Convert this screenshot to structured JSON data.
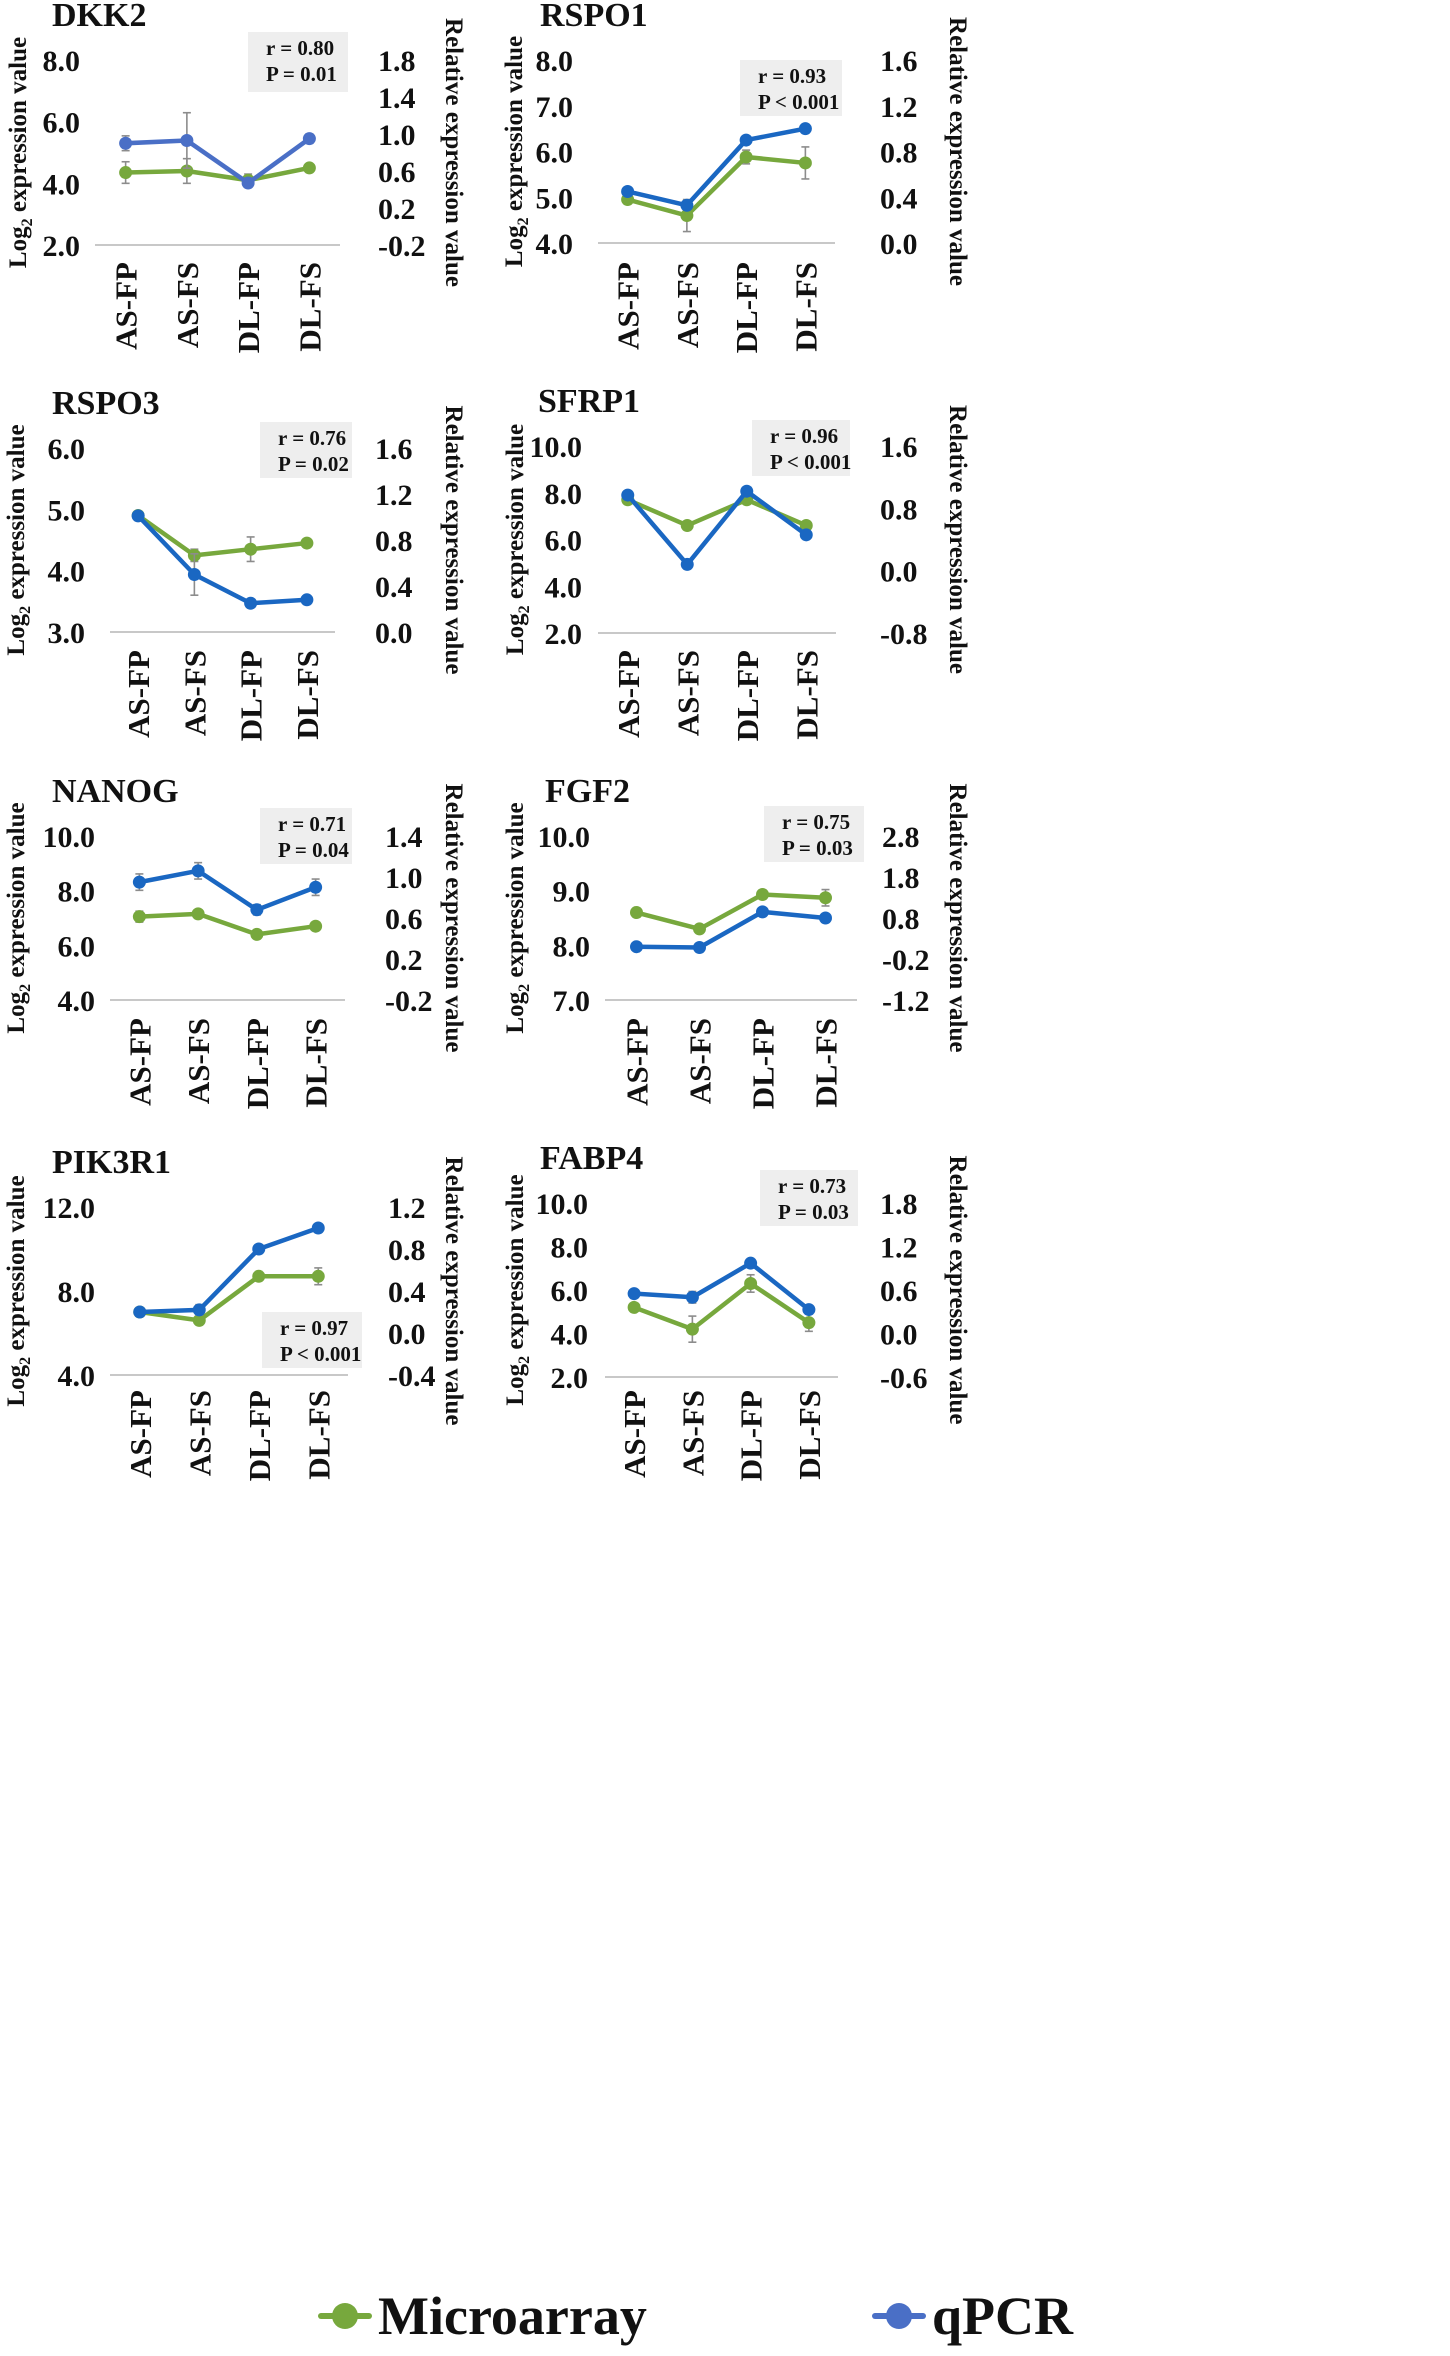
{
  "colors": {
    "microarray": "#77a83d",
    "qpcr": "#1a67c2",
    "qpcr_dkk2": "#4a6fc6",
    "text": "#111111",
    "axis": "#c8c8c8",
    "annotation_bg": "#eeeeee",
    "error_bar": "#8c8c8c"
  },
  "legend": {
    "microarray_label": "Microarray",
    "qpcr_label": "qPCR"
  },
  "chart_data": [
    {
      "type": "line",
      "title": "DKK2",
      "categories": [
        "AS-FP",
        "AS-FS",
        "DL-FP",
        "DL-FS"
      ],
      "ylabel_left": "Log2 expression value",
      "ylabel_right": "Relative expression value",
      "y_left_ticks": [
        "8.0",
        "6.0",
        "4.0",
        "2.0"
      ],
      "y_left_range": [
        2.0,
        8.0
      ],
      "y_right_ticks": [
        "1.8",
        "1.4",
        "1.0",
        "0.6",
        "0.2",
        "-0.2"
      ],
      "y_right_range": [
        -0.2,
        1.8
      ],
      "annotation": [
        "r = 0.80",
        "P = 0.01"
      ],
      "annotation_position": "top-right",
      "series": [
        {
          "name": "Microarray",
          "axis": "left",
          "values": [
            4.35,
            4.4,
            4.1,
            4.5
          ],
          "errors": [
            0.35,
            0.4,
            0.2,
            0.05
          ]
        },
        {
          "name": "qPCR",
          "axis": "right",
          "values": [
            0.9,
            0.93,
            0.47,
            0.95
          ],
          "errors": [
            0.08,
            0.3,
            0.04,
            0.05
          ]
        }
      ]
    },
    {
      "type": "line",
      "title": "RSPO1",
      "categories": [
        "AS-FP",
        "AS-FS",
        "DL-FP",
        "DL-FS"
      ],
      "ylabel_left": "Log2 expression value",
      "ylabel_right": "Relative expression value",
      "y_left_ticks": [
        "8.0",
        "7.0",
        "6.0",
        "5.0",
        "4.0"
      ],
      "y_left_range": [
        4.0,
        8.0
      ],
      "y_right_ticks": [
        "1.6",
        "1.2",
        "0.8",
        "0.4",
        "0.0"
      ],
      "y_right_range": [
        0.0,
        1.6
      ],
      "annotation": [
        "r = 0.93",
        "P < 0.001"
      ],
      "annotation_position": "top-right",
      "series": [
        {
          "name": "Microarray",
          "axis": "left",
          "values": [
            4.95,
            4.6,
            5.88,
            5.75
          ],
          "errors": [
            0.05,
            0.35,
            0.15,
            0.35
          ]
        },
        {
          "name": "qPCR",
          "axis": "right",
          "values": [
            0.45,
            0.33,
            0.9,
            1.0
          ],
          "errors": [
            0.02,
            0.04,
            0.03,
            0.02
          ]
        }
      ]
    },
    {
      "type": "line",
      "title": "RSPO3",
      "categories": [
        "AS-FP",
        "AS-FS",
        "DL-FP",
        "DL-FS"
      ],
      "ylabel_left": "Log2 expression value",
      "ylabel_right": "Relative expression value",
      "y_left_ticks": [
        "6.0",
        "5.0",
        "4.0",
        "3.0"
      ],
      "y_left_range": [
        3.0,
        6.0
      ],
      "y_right_ticks": [
        "1.6",
        "1.2",
        "0.8",
        "0.4",
        "0.0"
      ],
      "y_right_range": [
        0.0,
        1.6
      ],
      "annotation": [
        "r = 0.76",
        "P = 0.02"
      ],
      "annotation_position": "top-right",
      "series": [
        {
          "name": "Microarray",
          "axis": "left",
          "values": [
            4.9,
            4.25,
            4.35,
            4.45
          ],
          "errors": [
            0.05,
            0.1,
            0.2,
            0.05
          ]
        },
        {
          "name": "qPCR",
          "axis": "right",
          "values": [
            1.01,
            0.5,
            0.25,
            0.28
          ],
          "errors": [
            0.02,
            0.18,
            0.03,
            0.02
          ]
        }
      ]
    },
    {
      "type": "line",
      "title": "SFRP1",
      "categories": [
        "AS-FP",
        "AS-FS",
        "DL-FP",
        "DL-FS"
      ],
      "ylabel_left": "Log2 expression value",
      "ylabel_right": "Relative expression value",
      "y_left_ticks": [
        "10.0",
        "8.0",
        "6.0",
        "4.0",
        "2.0"
      ],
      "y_left_range": [
        2.0,
        10.0
      ],
      "y_right_ticks": [
        "1.6",
        "0.8",
        "0.0",
        "-0.8"
      ],
      "y_right_range": [
        -0.8,
        1.6
      ],
      "annotation": [
        "r = 0.96",
        "P < 0.001"
      ],
      "annotation_position": "top-right",
      "series": [
        {
          "name": "Microarray",
          "axis": "left",
          "values": [
            7.7,
            6.6,
            7.7,
            6.6
          ],
          "errors": [
            0.1,
            0.1,
            0.1,
            0.1
          ]
        },
        {
          "name": "qPCR",
          "axis": "right",
          "values": [
            0.97,
            0.08,
            1.02,
            0.46
          ],
          "errors": [
            0.02,
            0.02,
            0.02,
            0.02
          ]
        }
      ]
    },
    {
      "type": "line",
      "title": "NANOG",
      "categories": [
        "AS-FP",
        "AS-FS",
        "DL-FP",
        "DL-FS"
      ],
      "ylabel_left": "Log2 expression value",
      "ylabel_right": "Relative expression value",
      "y_left_ticks": [
        "10.0",
        "8.0",
        "6.0",
        "4.0"
      ],
      "y_left_range": [
        4.0,
        10.0
      ],
      "y_right_ticks": [
        "1.4",
        "1.0",
        "0.6",
        "0.2",
        "-0.2"
      ],
      "y_right_range": [
        -0.2,
        1.4
      ],
      "annotation": [
        "r = 0.71",
        "P = 0.04"
      ],
      "annotation_position": "top-right",
      "series": [
        {
          "name": "Microarray",
          "axis": "left",
          "values": [
            7.05,
            7.15,
            6.4,
            6.7
          ],
          "errors": [
            0.2,
            0.1,
            0.1,
            0.05
          ]
        },
        {
          "name": "qPCR",
          "axis": "right",
          "values": [
            0.95,
            1.06,
            0.68,
            0.9
          ],
          "errors": [
            0.08,
            0.08,
            0.05,
            0.08
          ]
        }
      ]
    },
    {
      "type": "line",
      "title": "FGF2",
      "categories": [
        "AS-FP",
        "AS-FS",
        "DL-FP",
        "DL-FS"
      ],
      "ylabel_left": "Log2 expression value",
      "ylabel_right": "Relative expression value",
      "y_left_ticks": [
        "10.0",
        "9.0",
        "8.0",
        "7.0"
      ],
      "y_left_range": [
        7.0,
        10.0
      ],
      "y_right_ticks": [
        "2.8",
        "1.8",
        "0.8",
        "-0.2",
        "-1.2"
      ],
      "y_right_range": [
        -1.2,
        2.8
      ],
      "annotation": [
        "r = 0.75",
        "P = 0.03"
      ],
      "annotation_position": "top-right",
      "series": [
        {
          "name": "Microarray",
          "axis": "left",
          "values": [
            8.6,
            8.3,
            8.93,
            8.87
          ],
          "errors": [
            0.08,
            0.03,
            0.08,
            0.15
          ]
        },
        {
          "name": "qPCR",
          "axis": "right",
          "values": [
            0.1,
            0.08,
            0.95,
            0.8
          ],
          "errors": [
            0.02,
            0.02,
            0.03,
            0.03
          ]
        }
      ]
    },
    {
      "type": "line",
      "title": "PIK3R1",
      "categories": [
        "AS-FP",
        "AS-FS",
        "DL-FP",
        "DL-FS"
      ],
      "ylabel_left": "Log2 expression value",
      "ylabel_right": "Relative expression value",
      "y_left_ticks": [
        "12.0",
        "8.0",
        "4.0"
      ],
      "y_left_range": [
        4.0,
        12.0
      ],
      "y_right_ticks": [
        "1.2",
        "0.8",
        "0.4",
        "0.0",
        "-0.4"
      ],
      "y_right_range": [
        -0.4,
        1.2
      ],
      "annotation": [
        "r = 0.97",
        "P < 0.001"
      ],
      "annotation_position": "bottom-right",
      "series": [
        {
          "name": "Microarray",
          "axis": "left",
          "values": [
            7.0,
            6.6,
            8.7,
            8.7
          ],
          "errors": [
            0.1,
            0.1,
            0.1,
            0.4
          ]
        },
        {
          "name": "qPCR",
          "axis": "right",
          "values": [
            0.2,
            0.22,
            0.8,
            1.0
          ],
          "errors": [
            0.02,
            0.05,
            0.02,
            0.02
          ]
        }
      ]
    },
    {
      "type": "line",
      "title": "FABP4",
      "categories": [
        "AS-FP",
        "AS-FS",
        "DL-FP",
        "DL-FS"
      ],
      "ylabel_left": "Log2 expression value",
      "ylabel_right": "Relative expression value",
      "y_left_ticks": [
        "10.0",
        "8.0",
        "6.0",
        "4.0",
        "2.0"
      ],
      "y_left_range": [
        2.0,
        10.0
      ],
      "y_right_ticks": [
        "1.8",
        "1.2",
        "0.6",
        "0.0",
        "-0.6"
      ],
      "y_right_range": [
        -0.6,
        1.8
      ],
      "annotation": [
        "r = 0.73",
        "P = 0.03"
      ],
      "annotation_position": "top-right",
      "series": [
        {
          "name": "Microarray",
          "axis": "left",
          "values": [
            5.2,
            4.2,
            6.3,
            4.5
          ],
          "errors": [
            0.05,
            0.6,
            0.4,
            0.4
          ]
        },
        {
          "name": "qPCR",
          "axis": "right",
          "values": [
            0.55,
            0.5,
            0.97,
            0.33
          ],
          "errors": [
            0.02,
            0.08,
            0.03,
            0.02
          ]
        }
      ]
    }
  ]
}
